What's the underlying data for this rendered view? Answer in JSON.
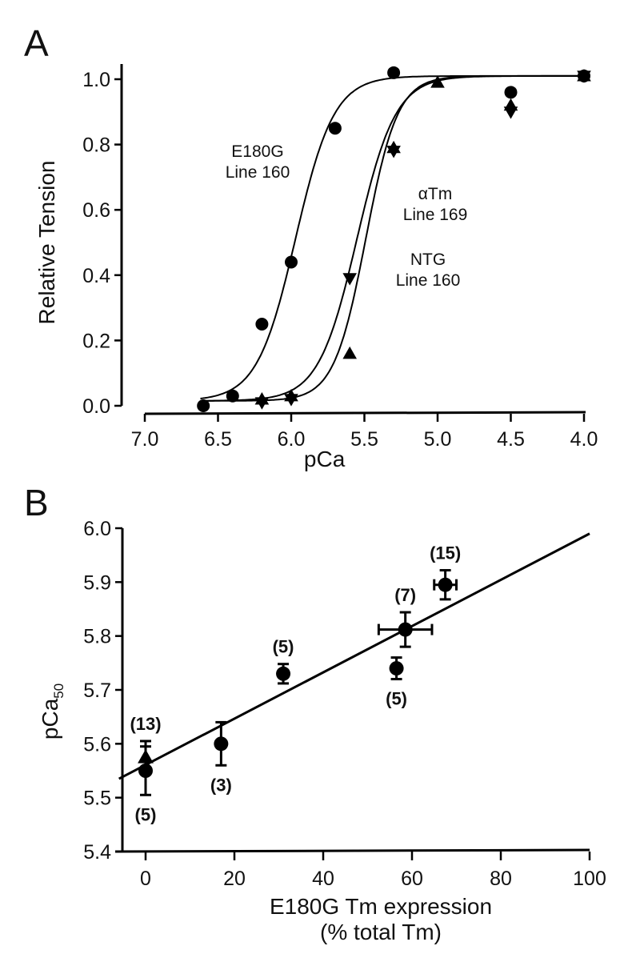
{
  "chart_data": [
    {
      "panel": "A",
      "type": "scatter",
      "xlabel": "pCa",
      "ylabel": "Relative Tension",
      "xlim": [
        7.0,
        4.0
      ],
      "ylim": [
        0.0,
        1.0
      ],
      "x_reversed": true,
      "xticks": [
        "7.0",
        "6.5",
        "6.0",
        "5.5",
        "5.0",
        "4.5",
        "4.0"
      ],
      "yticks": [
        "0.0",
        "0.2",
        "0.4",
        "0.6",
        "0.8",
        "1.0"
      ],
      "grid": false,
      "series": [
        {
          "name": "E180G Line 160",
          "label_lines": [
            "E180G",
            "Line 160"
          ],
          "marker": "circle",
          "fit": {
            "pCa50": 5.97,
            "hill": 3.3,
            "min": 0.015,
            "max": 1.01
          },
          "points": [
            [
              6.6,
              0.0
            ],
            [
              6.4,
              0.03
            ],
            [
              6.2,
              0.25
            ],
            [
              6.0,
              0.44
            ],
            [
              5.7,
              0.85
            ],
            [
              5.3,
              1.02
            ],
            [
              4.5,
              0.96
            ],
            [
              4.0,
              1.01
            ]
          ]
        },
        {
          "name": "αTm Line 169",
          "label_lines": [
            "αTm",
            "Line 169"
          ],
          "marker": "triangle-down",
          "fit": {
            "pCa50": 5.55,
            "hill": 3.3,
            "min": 0.015,
            "max": 1.01
          },
          "points": [
            [
              6.2,
              0.01
            ],
            [
              6.0,
              0.02
            ],
            [
              5.6,
              0.39
            ],
            [
              5.3,
              0.78
            ],
            [
              4.5,
              0.9
            ],
            [
              4.0,
              1.01
            ]
          ]
        },
        {
          "name": "NTG Line 160",
          "label_lines": [
            "NTG",
            "Line 160"
          ],
          "marker": "triangle-up",
          "fit": {
            "pCa50": 5.49,
            "hill": 4.0,
            "min": 0.015,
            "max": 1.01
          },
          "points": [
            [
              6.2,
              0.02
            ],
            [
              6.0,
              0.03
            ],
            [
              5.6,
              0.16
            ],
            [
              5.3,
              0.79
            ],
            [
              5.0,
              0.99
            ],
            [
              4.5,
              0.92
            ],
            [
              4.0,
              1.01
            ]
          ]
        }
      ]
    },
    {
      "panel": "B",
      "type": "scatter",
      "xlabel_lines": [
        "E180G Tm expression",
        "(% total Tm)"
      ],
      "ylabel": "pCa",
      "ylabel_sub": "50",
      "xlim": [
        -6,
        100
      ],
      "ylim": [
        5.4,
        6.0
      ],
      "xticks": [
        "0",
        "20",
        "40",
        "60",
        "80",
        "100"
      ],
      "yticks": [
        "5.4",
        "5.5",
        "5.6",
        "5.7",
        "5.8",
        "5.9",
        "6.0"
      ],
      "grid": false,
      "regression": {
        "x": [
          -6,
          100
        ],
        "y": [
          5.535,
          5.99
        ]
      },
      "points": [
        {
          "x": 0,
          "y": 5.55,
          "yerr": 0.045,
          "xerr": 0,
          "marker": "circle",
          "n": "(5)",
          "label_pos": "below"
        },
        {
          "x": 0,
          "y": 5.575,
          "yerr": 0.03,
          "xerr": 0,
          "marker": "triangle-up",
          "n": "(13)",
          "label_pos": "above"
        },
        {
          "x": 17,
          "y": 5.6,
          "yerr": 0.04,
          "xerr": 0,
          "marker": "circle",
          "n": "(3)",
          "label_pos": "below"
        },
        {
          "x": 31,
          "y": 5.73,
          "yerr": 0.018,
          "xerr": 0,
          "marker": "circle",
          "n": "(5)",
          "label_pos": "above"
        },
        {
          "x": 56.5,
          "y": 5.74,
          "yerr": 0.02,
          "xerr": 0,
          "marker": "circle",
          "n": "(5)",
          "label_pos": "below"
        },
        {
          "x": 58.5,
          "y": 5.812,
          "yerr": 0.032,
          "xerr": 6,
          "marker": "circle",
          "n": "(7)",
          "label_pos": "above"
        },
        {
          "x": 67.5,
          "y": 5.895,
          "yerr": 0.027,
          "xerr": 2.5,
          "marker": "circle",
          "n": "(15)",
          "label_pos": "above"
        }
      ]
    }
  ],
  "panels": {
    "a_label": "A",
    "b_label": "B"
  }
}
